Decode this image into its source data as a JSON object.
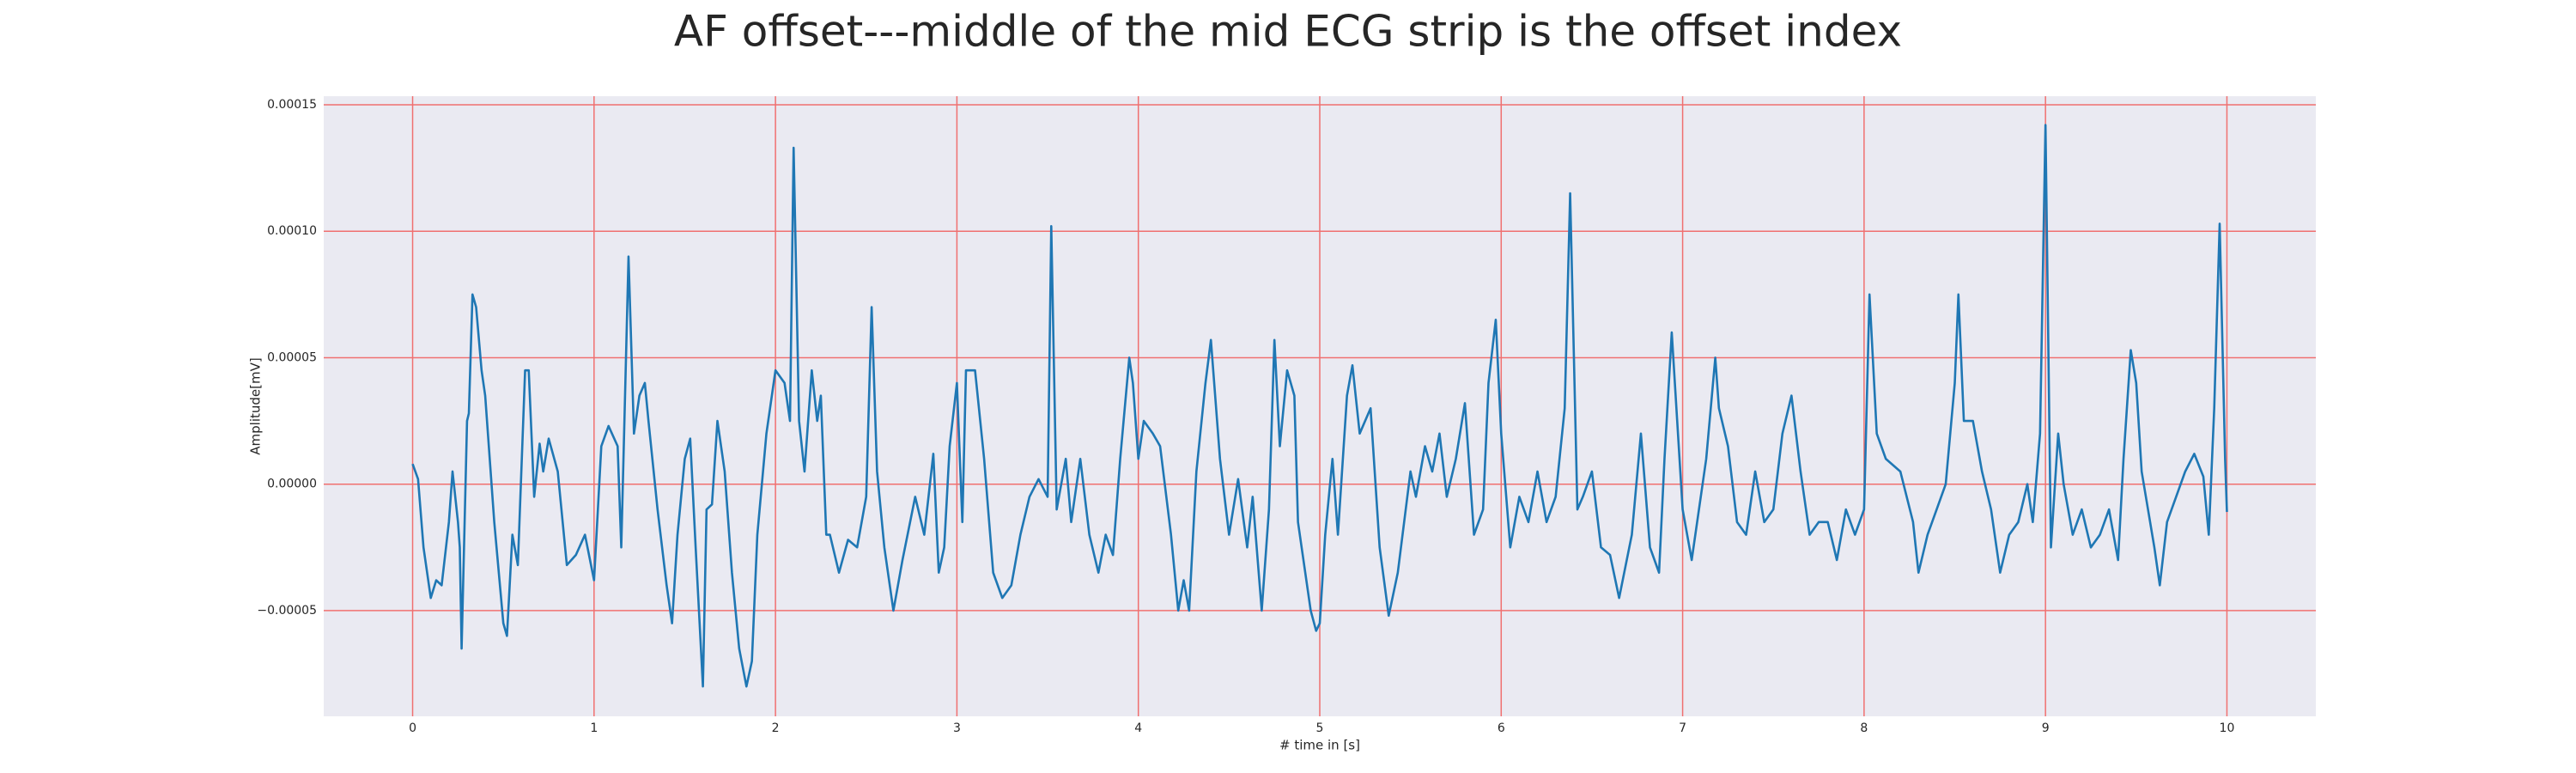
{
  "chart_data": {
    "type": "line",
    "title": "AF offset---middle of the mid ECG strip is the offset index",
    "xlabel": "# time in [s]",
    "ylabel": "Amplitude[mV]",
    "xlim": [
      -0.49,
      10.49
    ],
    "ylim": [
      -9.18e-05,
      0.0001534
    ],
    "xticks": [
      0,
      1,
      2,
      3,
      4,
      5,
      6,
      7,
      8,
      9,
      10
    ],
    "yticks": [
      {
        "value": -5e-05,
        "label": "−0.00005"
      },
      {
        "value": 0,
        "label": "0.00000"
      },
      {
        "value": 5e-05,
        "label": "0.00005"
      },
      {
        "value": 0.0001,
        "label": "0.00010"
      },
      {
        "value": 0.00015,
        "label": "0.00015"
      }
    ],
    "grid": true,
    "grid_color": "#f07070",
    "background": "#eaeaf2",
    "series": [
      {
        "color": "#1f77b4",
        "x": [
          0,
          0.03,
          0.06,
          0.1,
          0.13,
          0.16,
          0.2,
          0.22,
          0.25,
          0.26,
          0.27,
          0.3,
          0.31,
          0.33,
          0.35,
          0.38,
          0.4,
          0.45,
          0.5,
          0.52,
          0.55,
          0.58,
          0.62,
          0.64,
          0.67,
          0.7,
          0.72,
          0.75,
          0.8,
          0.85,
          0.9,
          0.95,
          1.0,
          1.04,
          1.08,
          1.13,
          1.15,
          1.19,
          1.22,
          1.25,
          1.28,
          1.3,
          1.35,
          1.4,
          1.43,
          1.46,
          1.5,
          1.53,
          1.56,
          1.6,
          1.62,
          1.65,
          1.68,
          1.72,
          1.76,
          1.8,
          1.84,
          1.87,
          1.9,
          1.95,
          2.0,
          2.05,
          2.08,
          2.1,
          2.13,
          2.16,
          2.2,
          2.23,
          2.25,
          2.28,
          2.3,
          2.35,
          2.4,
          2.45,
          2.5,
          2.53,
          2.56,
          2.6,
          2.65,
          2.7,
          2.77,
          2.82,
          2.87,
          2.9,
          2.93,
          2.96,
          3.0,
          3.03,
          3.05,
          3.1,
          3.15,
          3.2,
          3.25,
          3.3,
          3.35,
          3.4,
          3.45,
          3.5,
          3.52,
          3.55,
          3.6,
          3.63,
          3.68,
          3.73,
          3.78,
          3.82,
          3.86,
          3.9,
          3.95,
          3.97,
          4.0,
          4.03,
          4.08,
          4.12,
          4.18,
          4.22,
          4.25,
          4.28,
          4.32,
          4.37,
          4.4,
          4.45,
          4.5,
          4.55,
          4.6,
          4.63,
          4.68,
          4.72,
          4.75,
          4.78,
          4.82,
          4.86,
          4.88,
          4.9,
          4.95,
          4.98,
          5.0,
          5.03,
          5.07,
          5.1,
          5.15,
          5.18,
          5.22,
          5.28,
          5.33,
          5.38,
          5.43,
          5.5,
          5.53,
          5.58,
          5.62,
          5.66,
          5.7,
          5.75,
          5.8,
          5.85,
          5.9,
          5.93,
          5.97,
          6.0,
          6.05,
          6.1,
          6.15,
          6.2,
          6.25,
          6.3,
          6.35,
          6.38,
          6.42,
          6.45,
          6.5,
          6.55,
          6.6,
          6.65,
          6.72,
          6.77,
          6.82,
          6.87,
          6.9,
          6.94,
          6.97,
          7.0,
          7.05,
          7.08,
          7.13,
          7.18,
          7.2,
          7.25,
          7.3,
          7.35,
          7.4,
          7.45,
          7.5,
          7.55,
          7.6,
          7.65,
          7.7,
          7.75,
          7.8,
          7.85,
          7.9,
          7.95,
          8.0,
          8.03,
          8.07,
          8.12,
          8.2,
          8.27,
          8.3,
          8.35,
          8.4,
          8.45,
          8.5,
          8.52,
          8.55,
          8.6,
          8.65,
          8.7,
          8.75,
          8.8,
          8.85,
          8.9,
          8.93,
          8.97,
          9.0,
          9.03,
          9.07,
          9.1,
          9.15,
          9.2,
          9.25,
          9.3,
          9.35,
          9.4,
          9.43,
          9.47,
          9.5,
          9.53,
          9.6,
          9.63,
          9.67,
          9.72,
          9.77,
          9.82,
          9.87,
          9.9,
          9.93,
          9.96,
          9.99,
          10.0
        ],
        "values": [
          8e-06,
          2e-06,
          -2.5e-05,
          -4.5e-05,
          -3.8e-05,
          -4e-05,
          -1.5e-05,
          5e-06,
          -1.5e-05,
          -2.5e-05,
          -6.5e-05,
          2.5e-05,
          2.8e-05,
          7.5e-05,
          7e-05,
          4.5e-05,
          3.5e-05,
          -1.5e-05,
          -5.5e-05,
          -6e-05,
          -2e-05,
          -3.2e-05,
          4.5e-05,
          4.5e-05,
          -5e-06,
          1.6e-05,
          5e-06,
          1.8e-05,
          5e-06,
          -3.2e-05,
          -2.8e-05,
          -2e-05,
          -3.8e-05,
          1.5e-05,
          2.3e-05,
          1.5e-05,
          -2.5e-05,
          9e-05,
          2e-05,
          3.5e-05,
          4e-05,
          2.5e-05,
          -1e-05,
          -4e-05,
          -5.5e-05,
          -2e-05,
          1e-05,
          1.8e-05,
          -2.5e-05,
          -8e-05,
          -1e-05,
          -8e-06,
          2.5e-05,
          5e-06,
          -3.5e-05,
          -6.5e-05,
          -8e-05,
          -7e-05,
          -2e-05,
          2e-05,
          4.5e-05,
          4e-05,
          2.5e-05,
          0.000133,
          2.5e-05,
          5e-06,
          4.5e-05,
          2.5e-05,
          3.5e-05,
          -2e-05,
          -2e-05,
          -3.5e-05,
          -2.2e-05,
          -2.5e-05,
          -5e-06,
          7e-05,
          5e-06,
          -2.5e-05,
          -5e-05,
          -3e-05,
          -5e-06,
          -2e-05,
          1.2e-05,
          -3.5e-05,
          -2.5e-05,
          1.5e-05,
          4e-05,
          -1.5e-05,
          4.5e-05,
          4.5e-05,
          1e-05,
          -3.5e-05,
          -4.5e-05,
          -4e-05,
          -2e-05,
          -5e-06,
          2e-06,
          -5e-06,
          0.000102,
          -1e-05,
          1e-05,
          -1.5e-05,
          1e-05,
          -2e-05,
          -3.5e-05,
          -2e-05,
          -2.8e-05,
          1e-05,
          5e-05,
          4e-05,
          1e-05,
          2.5e-05,
          2e-05,
          1.5e-05,
          -2e-05,
          -5e-05,
          -3.8e-05,
          -5e-05,
          5e-06,
          4e-05,
          5.7e-05,
          1e-05,
          -2e-05,
          2e-06,
          -2.5e-05,
          -5e-06,
          -5e-05,
          -1e-05,
          5.7e-05,
          1.5e-05,
          4.5e-05,
          3.5e-05,
          -1.5e-05,
          -2.5e-05,
          -5e-05,
          -5.8e-05,
          -5.5e-05,
          -2e-05,
          1e-05,
          -2e-05,
          3.5e-05,
          4.7e-05,
          2e-05,
          3e-05,
          -2.5e-05,
          -5.2e-05,
          -3.5e-05,
          5e-06,
          -5e-06,
          1.5e-05,
          5e-06,
          2e-05,
          -5e-06,
          1e-05,
          3.2e-05,
          -2e-05,
          -1e-05,
          4e-05,
          6.5e-05,
          2e-05,
          -2.5e-05,
          -5e-06,
          -1.5e-05,
          5e-06,
          -1.5e-05,
          -5e-06,
          3e-05,
          0.000115,
          -1e-05,
          -5e-06,
          5e-06,
          -2.5e-05,
          -2.8e-05,
          -4.5e-05,
          -2e-05,
          2e-05,
          -2.5e-05,
          -3.5e-05,
          1e-05,
          6e-05,
          2.5e-05,
          -1e-05,
          -3e-05,
          -1.5e-05,
          1e-05,
          5e-05,
          3e-05,
          1.5e-05,
          -1.5e-05,
          -2e-05,
          5e-06,
          -1.5e-05,
          -1e-05,
          2e-05,
          3.5e-05,
          5e-06,
          -2e-05,
          -1.5e-05,
          -1.5e-05,
          -3e-05,
          -1e-05,
          -2e-05,
          -1e-05,
          7.5e-05,
          2e-05,
          1e-05,
          5e-06,
          -1.5e-05,
          -3.5e-05,
          -2e-05,
          -1e-05,
          0,
          4e-05,
          7.5e-05,
          2.5e-05,
          2.5e-05,
          5e-06,
          -1e-05,
          -3.5e-05,
          -2e-05,
          -1.5e-05,
          0,
          -1.5e-05,
          2e-05,
          0.000142,
          -2.5e-05,
          2e-05,
          0,
          -2e-05,
          -1e-05,
          -2.5e-05,
          -2e-05,
          -1e-05,
          -3e-05,
          1e-05,
          5.3e-05,
          4e-05,
          5e-06,
          -2.5e-05,
          -4e-05,
          -1.5e-05,
          -5e-06,
          5e-06,
          1.2e-05,
          3e-06,
          -2e-05,
          3e-05,
          0.000103,
          1e-05,
          -1.1e-05
        ]
      }
    ]
  }
}
